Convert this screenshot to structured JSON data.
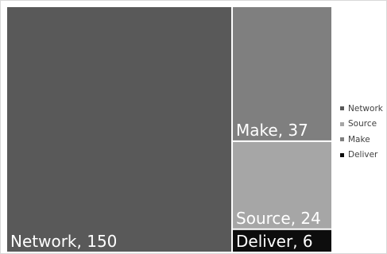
{
  "chart_data": {
    "type": "treemap",
    "title": "",
    "categories": [
      "Network",
      "Source",
      "Make",
      "Deliver"
    ],
    "values": [
      150,
      24,
      37,
      6
    ],
    "colors": {
      "Network": "#595959",
      "Source": "#a6a6a6",
      "Make": "#7f7f7f",
      "Deliver": "#0d0d0d"
    },
    "tile_labels": {
      "Network": "Network, 150",
      "Make": "Make, 37",
      "Source": "Source, 24",
      "Deliver": "Deliver, 6"
    },
    "legend": {
      "position": "right",
      "entries": [
        "Network",
        "Source",
        "Make",
        "Deliver"
      ]
    }
  }
}
